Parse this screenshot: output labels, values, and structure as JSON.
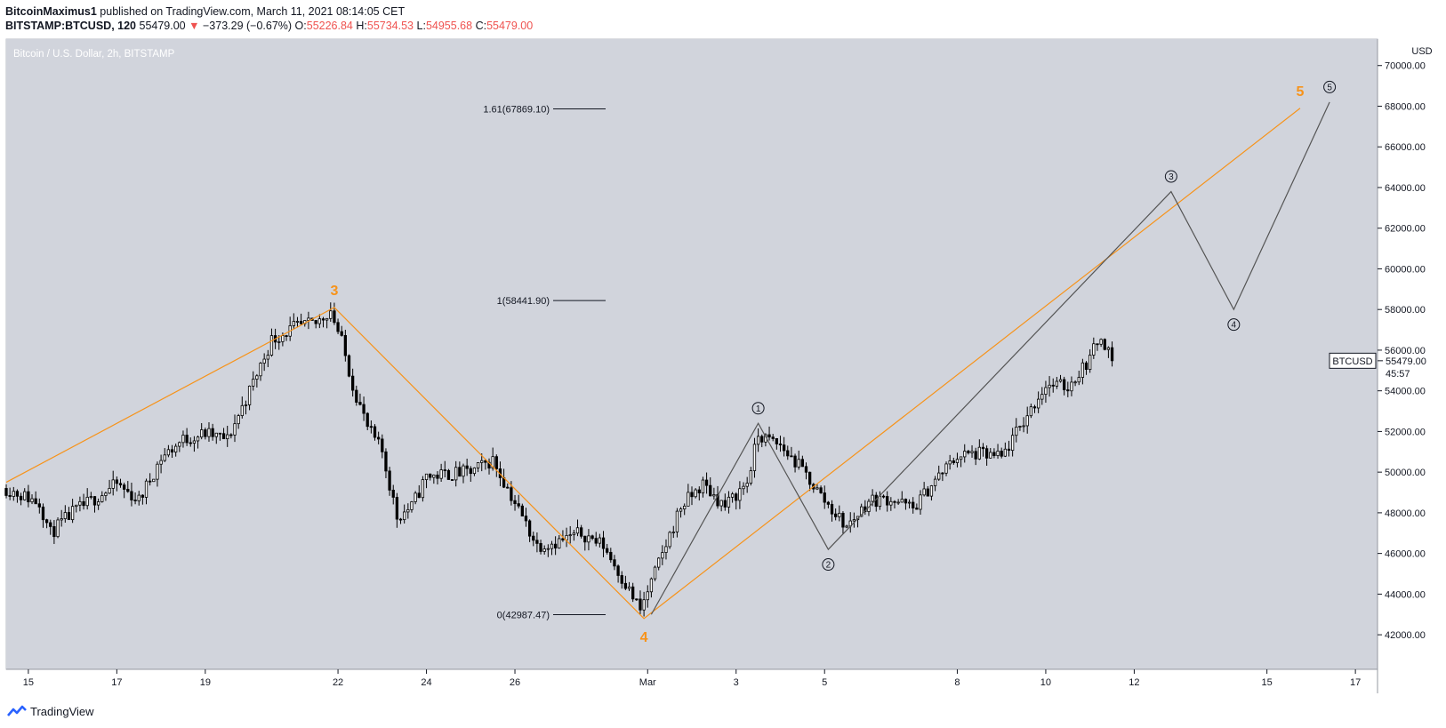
{
  "header": {
    "author": "BitcoinMaximus1",
    "published_text": " published on TradingView.com, March 11, 2021 08:14:05 CET",
    "symbol": "BITSTAMP:BTCUSD, 120",
    "last": "55479.00",
    "change": "−373.29 (−0.67%)",
    "o_label": "O:",
    "o_value": "55226.84",
    "h_label": "H:",
    "h_value": "55734.53",
    "l_label": "L:",
    "l_value": "54955.68",
    "c_label": "C:",
    "c_value": "55479.00"
  },
  "footer": {
    "brand": "TradingView"
  },
  "chart_data": {
    "type": "candlestick",
    "title": "Bitcoin / U.S. Dollar, 2h, BITSTAMP",
    "currency_label": "USD",
    "price_tag": {
      "symbol": "BTCUSD",
      "price": "55479.00",
      "countdown": "45:57"
    },
    "x_tick_labels": [
      "15",
      "17",
      "19",
      "22",
      "24",
      "26",
      "Mar",
      "3",
      "5",
      "8",
      "10",
      "12",
      "15",
      "17"
    ],
    "x_tick_dates": [
      "2021-02-15",
      "2021-02-17",
      "2021-02-19",
      "2021-02-22",
      "2021-02-24",
      "2021-02-26",
      "2021-03-01",
      "2021-03-03",
      "2021-03-05",
      "2021-03-08",
      "2021-03-10",
      "2021-03-12",
      "2021-03-15",
      "2021-03-17"
    ],
    "y_ticks": [
      "42000.00",
      "44000.00",
      "46000.00",
      "48000.00",
      "50000.00",
      "52000.00",
      "54000.00",
      "56000.00",
      "58000.00",
      "60000.00",
      "62000.00",
      "64000.00",
      "66000.00",
      "68000.00",
      "70000.00"
    ],
    "ylim": [
      40300,
      71300
    ],
    "xlim": [
      "2021-02-14T12:00",
      "2021-03-17T12:00"
    ],
    "close_path": [
      [
        "2021-02-14T12:00",
        49200
      ],
      [
        "2021-02-15T06:00",
        48500
      ],
      [
        "2021-02-15T12:00",
        47000
      ],
      [
        "2021-02-16T00:00",
        48000
      ],
      [
        "2021-02-16T12:00",
        48700
      ],
      [
        "2021-02-17T00:00",
        49400
      ],
      [
        "2021-02-17T12:00",
        48600
      ],
      [
        "2021-02-18T00:00",
        50700
      ],
      [
        "2021-02-18T12:00",
        51600
      ],
      [
        "2021-02-19T00:00",
        51900
      ],
      [
        "2021-02-19T12:00",
        51600
      ],
      [
        "2021-02-20T00:00",
        54000
      ],
      [
        "2021-02-20T12:00",
        56500
      ],
      [
        "2021-02-21T00:00",
        57100
      ],
      [
        "2021-02-21T12:00",
        57300
      ],
      [
        "2021-02-21T20:00",
        58000
      ],
      [
        "2021-02-22T02:00",
        56400
      ],
      [
        "2021-02-22T08:00",
        54300
      ],
      [
        "2021-02-22T16:00",
        52200
      ],
      [
        "2021-02-23T00:00",
        51000
      ],
      [
        "2021-02-23T08:00",
        47800
      ],
      [
        "2021-02-23T16:00",
        48300
      ],
      [
        "2021-02-24T00:00",
        49800
      ],
      [
        "2021-02-24T12:00",
        49900
      ],
      [
        "2021-02-25T00:00",
        50000
      ],
      [
        "2021-02-25T12:00",
        50600
      ],
      [
        "2021-02-26T00:00",
        48500
      ],
      [
        "2021-02-26T12:00",
        46400
      ],
      [
        "2021-02-27T00:00",
        46600
      ],
      [
        "2021-02-27T12:00",
        47000
      ],
      [
        "2021-02-28T00:00",
        46400
      ],
      [
        "2021-02-28T12:00",
        44500
      ],
      [
        "2021-02-28T20:00",
        43200
      ],
      [
        "2021-03-01T06:00",
        45500
      ],
      [
        "2021-03-01T18:00",
        48300
      ],
      [
        "2021-03-02T06:00",
        49400
      ],
      [
        "2021-03-02T18:00",
        48300
      ],
      [
        "2021-03-03T06:00",
        49500
      ],
      [
        "2021-03-03T12:00",
        51800
      ],
      [
        "2021-03-04T00:00",
        51300
      ],
      [
        "2021-03-04T12:00",
        50100
      ],
      [
        "2021-03-05T00:00",
        48600
      ],
      [
        "2021-03-05T12:00",
        47300
      ],
      [
        "2021-03-06T00:00",
        48600
      ],
      [
        "2021-03-06T12:00",
        48700
      ],
      [
        "2021-03-07T00:00",
        48200
      ],
      [
        "2021-03-07T12:00",
        49600
      ],
      [
        "2021-03-08T00:00",
        50800
      ],
      [
        "2021-03-08T12:00",
        50900
      ],
      [
        "2021-03-09T00:00",
        50700
      ],
      [
        "2021-03-09T12:00",
        52500
      ],
      [
        "2021-03-10T00:00",
        54300
      ],
      [
        "2021-03-10T12:00",
        54200
      ],
      [
        "2021-03-11T00:00",
        55600
      ],
      [
        "2021-03-11T06:00",
        56800
      ],
      [
        "2021-03-11T12:00",
        55479
      ]
    ],
    "fib_levels": [
      {
        "label": "1.61(67869.10)",
        "price": 67869.1
      },
      {
        "label": "1(58441.90)",
        "price": 58441.9
      },
      {
        "label": "0(42987.47)",
        "price": 42987.47
      }
    ],
    "primary_wave_line": {
      "color": "#f7931a",
      "points": [
        [
          "2021-02-14T12:00",
          49500
        ],
        [
          "2021-02-21T22:00",
          58100
        ],
        [
          "2021-02-28T22:00",
          42800
        ],
        [
          "2021-03-15T18:00",
          67900
        ]
      ],
      "labels": [
        {
          "text": "3",
          "at": [
            "2021-02-21T22:00",
            58100
          ]
        },
        {
          "text": "4",
          "at": [
            "2021-02-28T22:00",
            42800
          ]
        },
        {
          "text": "5",
          "at": [
            "2021-03-15T18:00",
            67900
          ]
        }
      ]
    },
    "sub_wave_line": {
      "color": "#555555",
      "points": [
        [
          "2021-03-01T02:00",
          43000
        ],
        [
          "2021-03-03T12:00",
          52400
        ],
        [
          "2021-03-05T02:00",
          46200
        ],
        [
          "2021-03-12T20:00",
          63800
        ],
        [
          "2021-03-14T06:00",
          58000
        ],
        [
          "2021-03-16T10:00",
          68200
        ]
      ],
      "labels": [
        {
          "text": "1",
          "at": [
            "2021-03-03T12:00",
            52400
          ]
        },
        {
          "text": "2",
          "at": [
            "2021-03-05T02:00",
            46200
          ]
        },
        {
          "text": "3",
          "at": [
            "2021-03-12T20:00",
            63800
          ]
        },
        {
          "text": "4",
          "at": [
            "2021-03-14T06:00",
            58000
          ]
        },
        {
          "text": "5",
          "at": [
            "2021-03-16T10:00",
            68200
          ]
        }
      ]
    },
    "colors": {
      "background": "#d1d4dc",
      "candle_up": "#ffffff",
      "candle_down": "#000000",
      "primary_wave": "#f7931a",
      "sub_wave": "#555555",
      "header_values": "#ef5350"
    }
  }
}
